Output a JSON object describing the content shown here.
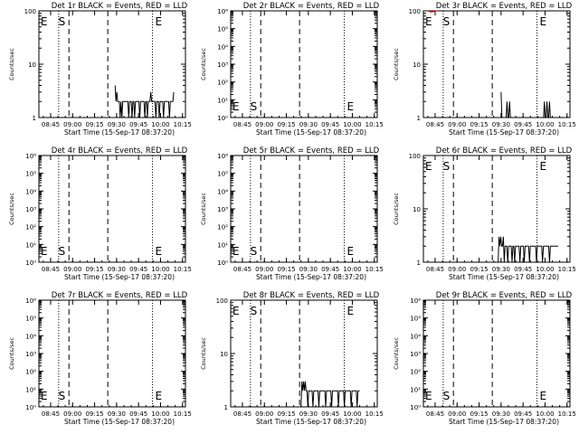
{
  "page": {
    "background": "#ffffff",
    "line_color": "#000000",
    "lld_color": "#e00000"
  },
  "shared": {
    "xlabel": "Start Time (15-Sep-17 08:37:20)",
    "ylabel": "Counts/sec",
    "x_ticks": [
      "08:45",
      "09:00",
      "09:15",
      "09:30",
      "09:45",
      "10:00",
      "10:15"
    ],
    "x_tick_minutes": [
      8,
      23,
      38,
      53,
      68,
      83,
      98
    ],
    "xlim_minutes": [
      0,
      100
    ],
    "markers": {
      "S": {
        "label": "S",
        "minute": 20.5,
        "style": "dashed"
      },
      "E": {
        "label": "E",
        "minute": 86.5,
        "style": "dashed"
      },
      "mid_dashed_minute": 47,
      "dotted_minutes": [
        13.5,
        77.5
      ]
    }
  },
  "chart_data": [
    {
      "type": "line",
      "title": "Det 1r BLACK = Events, RED = LLD",
      "yscale": "log",
      "ylim": [
        1,
        100
      ],
      "y_ticks": [
        "1",
        "10",
        "100"
      ],
      "empty": false,
      "series": [
        {
          "name": "Events",
          "color": "#000000",
          "start_minute": 52,
          "end_minute": 92,
          "values": [
            4,
            2,
            3,
            2,
            2,
            2,
            1,
            2,
            1,
            2,
            2,
            2,
            2,
            2,
            2,
            2,
            1,
            2,
            2,
            2,
            1,
            2,
            2,
            1,
            2,
            2,
            2,
            2,
            2,
            1,
            2,
            2,
            2,
            2,
            2,
            1,
            2,
            2,
            1,
            2,
            2,
            2,
            3,
            2,
            2,
            2,
            2,
            2,
            1,
            2,
            2,
            2,
            1,
            2,
            2,
            2,
            2,
            1,
            2,
            2,
            2,
            2,
            2,
            2,
            1,
            2,
            2,
            2,
            2,
            3
          ]
        }
      ]
    },
    {
      "type": "line",
      "title": "Det 2r BLACK = Events, RED = LLD",
      "yscale": "log",
      "ylim": [
        1,
        1000000
      ],
      "y_ticks": [
        "10⁰",
        "10¹",
        "10²",
        "10³",
        "10⁴",
        "10⁵",
        "10⁶"
      ],
      "empty": true,
      "series": []
    },
    {
      "type": "line",
      "title": "Det 3r BLACK = Events, RED = LLD",
      "yscale": "log",
      "ylim": [
        1,
        100
      ],
      "y_ticks": [
        "1",
        "10",
        "100"
      ],
      "empty": false,
      "series": [
        {
          "name": "Events",
          "color": "#000000",
          "start_minute": 53,
          "end_minute": 93,
          "values": [
            3,
            1,
            1,
            1,
            1,
            1,
            1,
            2,
            1,
            1,
            2,
            1,
            1,
            1,
            1,
            1,
            1,
            1,
            1,
            1,
            1,
            1,
            1,
            1,
            1,
            1,
            1,
            1,
            1,
            1,
            1,
            1,
            1,
            1,
            1,
            1,
            1,
            1,
            1,
            1,
            1,
            1,
            1,
            1,
            1,
            1,
            1,
            1,
            1,
            1,
            1,
            2,
            1,
            1,
            2,
            1,
            1,
            2,
            1,
            1,
            1,
            1,
            1,
            1,
            1,
            1,
            1,
            1,
            1,
            1
          ]
        },
        {
          "name": "LLD",
          "color": "#e00000",
          "start_minute": 3,
          "end_minute": 10,
          "values": [
            100,
            95,
            98,
            100
          ]
        }
      ]
    },
    {
      "type": "line",
      "title": "Det 4r BLACK = Events, RED = LLD",
      "yscale": "log",
      "ylim": [
        1,
        1000000
      ],
      "y_ticks": [
        "10⁰",
        "10¹",
        "10²",
        "10³",
        "10⁴",
        "10⁵",
        "10⁶"
      ],
      "empty": true,
      "series": []
    },
    {
      "type": "line",
      "title": "Det 5r BLACK = Events, RED = LLD",
      "yscale": "log",
      "ylim": [
        1,
        1000000
      ],
      "y_ticks": [
        "10⁰",
        "10¹",
        "10²",
        "10³",
        "10⁴",
        "10⁵",
        "10⁶"
      ],
      "empty": true,
      "series": []
    },
    {
      "type": "line",
      "title": "Det 6r BLACK = Events, RED = LLD",
      "yscale": "log",
      "ylim": [
        1,
        100
      ],
      "y_ticks": [
        "1",
        "10",
        "100"
      ],
      "empty": false,
      "series": [
        {
          "name": "Events",
          "color": "#000000",
          "start_minute": 51,
          "end_minute": 92,
          "values": [
            1,
            3,
            2,
            3,
            2,
            2,
            3,
            1,
            2,
            2,
            2,
            1,
            2,
            2,
            2,
            2,
            1,
            2,
            2,
            1,
            2,
            2,
            2,
            2,
            2,
            1,
            2,
            2,
            2,
            2,
            1,
            2,
            2,
            2,
            2,
            2,
            1,
            2,
            2,
            2,
            2,
            2,
            2,
            2,
            1,
            2,
            2,
            2,
            2,
            2,
            2,
            1,
            2,
            2,
            2,
            2,
            2,
            2,
            2,
            1,
            2,
            2,
            2,
            2,
            2,
            2,
            2,
            2,
            2,
            2
          ]
        }
      ]
    },
    {
      "type": "line",
      "title": "Det 7r BLACK = Events, RED = LLD",
      "yscale": "log",
      "ylim": [
        1,
        1000000
      ],
      "y_ticks": [
        "10⁰",
        "10¹",
        "10²",
        "10³",
        "10⁴",
        "10⁵",
        "10⁶"
      ],
      "empty": true,
      "series": []
    },
    {
      "type": "line",
      "title": "Det 8r BLACK = Events, RED = LLD",
      "yscale": "log",
      "ylim": [
        1,
        100
      ],
      "y_ticks": [
        "1",
        "10",
        "100"
      ],
      "empty": false,
      "series": [
        {
          "name": "Events",
          "color": "#000000",
          "start_minute": 48,
          "end_minute": 88,
          "values": [
            1,
            3,
            2,
            3,
            2,
            3,
            2,
            2,
            1,
            2,
            2,
            2,
            2,
            2,
            1,
            2,
            2,
            2,
            2,
            2,
            2,
            1,
            2,
            2,
            2,
            2,
            2,
            2,
            2,
            1,
            2,
            2,
            2,
            2,
            2,
            2,
            1,
            2,
            2,
            2,
            2,
            2,
            2,
            2,
            1,
            2,
            2,
            2,
            2,
            2,
            2,
            1,
            2,
            2,
            2,
            2,
            2,
            2,
            2,
            1,
            2,
            2,
            2,
            2,
            2,
            2,
            1,
            2,
            2,
            2
          ]
        }
      ]
    },
    {
      "type": "line",
      "title": "Det 9r BLACK = Events, RED = LLD",
      "yscale": "log",
      "ylim": [
        1,
        1000000
      ],
      "y_ticks": [
        "10⁰",
        "10¹",
        "10²",
        "10³",
        "10⁴",
        "10⁵",
        "10⁶"
      ],
      "empty": true,
      "series": []
    }
  ]
}
